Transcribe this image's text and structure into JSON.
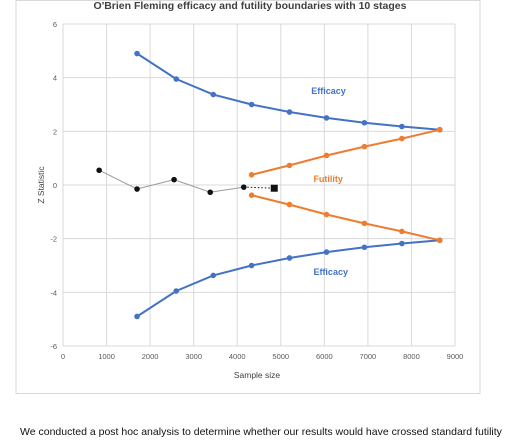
{
  "chart_data": {
    "type": "scatter",
    "title": "O'Brien Fleming efficacy and futility boundaries with 10 stages",
    "xlabel": "Sample size",
    "ylabel": "Z Statistic",
    "xlim": [
      0,
      9000
    ],
    "ylim": [
      -6,
      6
    ],
    "xticks": [
      0,
      1000,
      2000,
      3000,
      4000,
      5000,
      6000,
      7000,
      8000,
      9000
    ],
    "yticks": [
      -6,
      -4,
      -2,
      0,
      2,
      4,
      6
    ],
    "grid": true,
    "series": [
      {
        "name": "Efficacy",
        "style": "line-markers",
        "color": "#4472C4",
        "points": [
          [
            1700,
            4.9
          ],
          [
            2600,
            3.95
          ],
          [
            3450,
            3.37
          ],
          [
            4330,
            3.0
          ],
          [
            5200,
            2.72
          ],
          [
            6050,
            2.5
          ],
          [
            6920,
            2.32
          ],
          [
            7780,
            2.18
          ],
          [
            8650,
            2.06
          ]
        ]
      },
      {
        "name": "Efficacy",
        "style": "line-markers",
        "color": "#4472C4",
        "points": [
          [
            1700,
            -4.9
          ],
          [
            2600,
            -3.95
          ],
          [
            3450,
            -3.37
          ],
          [
            4330,
            -3.0
          ],
          [
            5200,
            -2.72
          ],
          [
            6050,
            -2.5
          ],
          [
            6920,
            -2.32
          ],
          [
            7780,
            -2.18
          ],
          [
            8650,
            -2.06
          ]
        ]
      },
      {
        "name": "Futility",
        "style": "line-markers",
        "color": "#ED7D31",
        "points": [
          [
            4330,
            0.38
          ],
          [
            5200,
            0.73
          ],
          [
            6050,
            1.1
          ],
          [
            6920,
            1.43
          ],
          [
            7780,
            1.73
          ],
          [
            8650,
            2.06
          ]
        ]
      },
      {
        "name": "",
        "style": "line-markers",
        "color": "#ED7D31",
        "points": [
          [
            4330,
            -0.38
          ],
          [
            5200,
            -0.73
          ],
          [
            6050,
            -1.1
          ],
          [
            6920,
            -1.43
          ],
          [
            7780,
            -1.73
          ],
          [
            8650,
            -2.06
          ]
        ]
      },
      {
        "name": "",
        "style": "line-markers",
        "color": "#111111",
        "line_color": "#999999",
        "points": [
          [
            830,
            0.55
          ],
          [
            1700,
            -0.15
          ],
          [
            2550,
            0.2
          ],
          [
            3380,
            -0.27
          ],
          [
            4150,
            -0.08
          ]
        ]
      },
      {
        "name": "",
        "style": "dotted-to-square",
        "color": "#111111",
        "points": [
          [
            4150,
            -0.08
          ],
          [
            4850,
            -0.12
          ]
        ]
      }
    ],
    "annotations": [
      {
        "text": "Efficacy",
        "x": 5700,
        "y": 3.4,
        "color": "#4472C4"
      },
      {
        "text": "Futility",
        "x": 5750,
        "y": 0.12,
        "color": "#ED7D31"
      },
      {
        "text": "Efficacy",
        "x": 5750,
        "y": -3.35,
        "color": "#4472C4"
      }
    ]
  },
  "caption": "We conducted a post hoc analysis to determine whether our results would have crossed standard futility"
}
